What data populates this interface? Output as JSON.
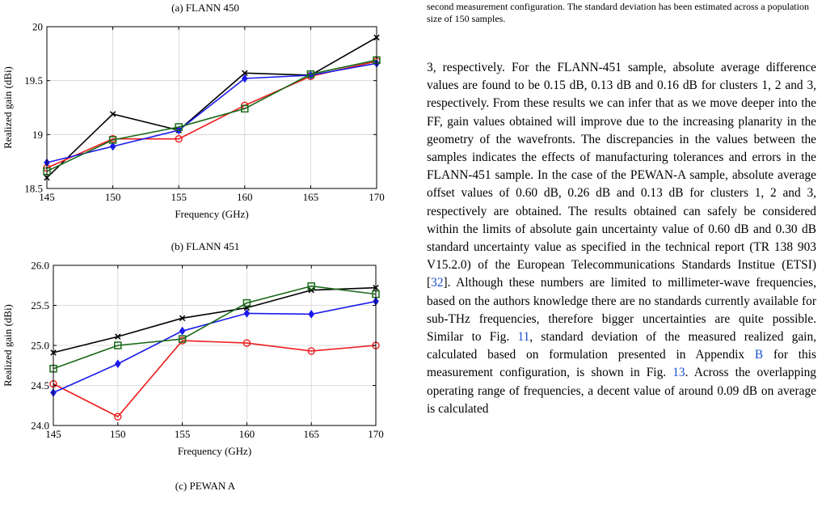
{
  "captions": {
    "a": "(a) FLANN 450",
    "b": "(b) FLANN 451",
    "c": "(c) PEWAN A"
  },
  "header_note": "second measurement configuration. The standard deviation has been estimated across a population size of 150 samples.",
  "body": {
    "p1": "3, respectively. For the FLANN-451 sample, absolute average difference values are found to be 0.15 dB, 0.13 dB and 0.16 dB for clusters 1, 2 and 3, respectively. From these results we can infer that as we move deeper into the FF, gain values obtained will improve due to the increasing planarity in the geometry of the wavefronts. The discrepancies in the values between the samples indicates the effects of manufacturing tolerances and errors in the FLANN-451 sample. In the case of the PEWAN-A sample, absolute average offset values of 0.60 dB, 0.26 dB and 0.13 dB for clusters 1, 2 and 3, respectively are obtained. The results obtained can safely be considered within the limits of absolute gain uncertainty value of 0.60 dB and 0.30 dB standard uncertainty value as specified in the technical report (TR 138 903 V15.2.0) of the European Telecommunications Standards Institue (ETSI) [",
    "ref32": "32",
    "p2": "]. Although these numbers are limited to millimeter-wave frequencies, based on the authors knowledge there are no standards currently available for sub-THz frequencies, therefore bigger uncertainties are quite possible. Similar to Fig. ",
    "ref11": "11",
    "p3": ", standard deviation of the measured realized gain, calculated based on formulation presented in Appendix ",
    "refB": "B",
    "p4": " for this measurement configuration, is shown in Fig. ",
    "ref13": "13",
    "p5": ". Across the overlapping operating range of frequencies, a decent value of around 0.09 dB on average is calculated"
  },
  "colors": {
    "black": "#000000",
    "red": "#ee1c1c",
    "blue": "#1a1aee",
    "green": "#1a6a1a"
  },
  "chart_data": [
    {
      "type": "line",
      "xlabel": "Frequency (GHz)",
      "ylabel": "Realized gain (dBi)",
      "xlim": [
        145,
        170
      ],
      "ylim": [
        18.5,
        20
      ],
      "xticks": [
        145,
        150,
        155,
        160,
        165,
        170
      ],
      "yticks": [
        18.5,
        19,
        19.5,
        20
      ],
      "ytick_labels": [
        "18.5",
        "19",
        "19.5",
        "20"
      ],
      "grid": true,
      "x": [
        145,
        150,
        155,
        160,
        165,
        170
      ],
      "series": [
        {
          "color": "#000000",
          "marker": "x",
          "values": [
            18.6,
            19.19,
            19.04,
            19.57,
            19.55,
            19.9
          ]
        },
        {
          "color": "#ee1c1c",
          "marker": "circle",
          "values": [
            18.69,
            18.96,
            18.96,
            19.27,
            19.54,
            19.68
          ]
        },
        {
          "color": "#1a1aee",
          "marker": "diamond",
          "values": [
            18.74,
            18.89,
            19.04,
            19.52,
            19.55,
            19.66
          ]
        },
        {
          "color": "#1a6a1a",
          "marker": "square",
          "values": [
            18.66,
            18.95,
            19.07,
            19.24,
            19.56,
            19.69
          ]
        }
      ]
    },
    {
      "type": "line",
      "xlabel": "Frequency (GHz)",
      "ylabel": "Realized gain (dBi)",
      "xlim": [
        145,
        170
      ],
      "ylim": [
        24,
        26
      ],
      "xticks": [
        145,
        150,
        155,
        160,
        165,
        170
      ],
      "yticks": [
        24,
        24.5,
        25,
        25.5,
        26
      ],
      "ytick_labels": [
        "24.0",
        "24.5",
        "25.0",
        "25.5",
        "26.0"
      ],
      "grid": true,
      "x": [
        145,
        150,
        155,
        160,
        165,
        170
      ],
      "series": [
        {
          "color": "#000000",
          "marker": "x",
          "values": [
            24.91,
            25.11,
            25.34,
            25.47,
            25.69,
            25.72
          ]
        },
        {
          "color": "#ee1c1c",
          "marker": "circle",
          "values": [
            24.52,
            24.11,
            25.06,
            25.03,
            24.93,
            25.0
          ]
        },
        {
          "color": "#1a1aee",
          "marker": "diamond",
          "values": [
            24.41,
            24.77,
            25.18,
            25.4,
            25.39,
            25.55
          ]
        },
        {
          "color": "#1a6a1a",
          "marker": "square",
          "values": [
            24.71,
            25.0,
            25.08,
            25.53,
            25.74,
            25.64
          ]
        }
      ]
    }
  ]
}
